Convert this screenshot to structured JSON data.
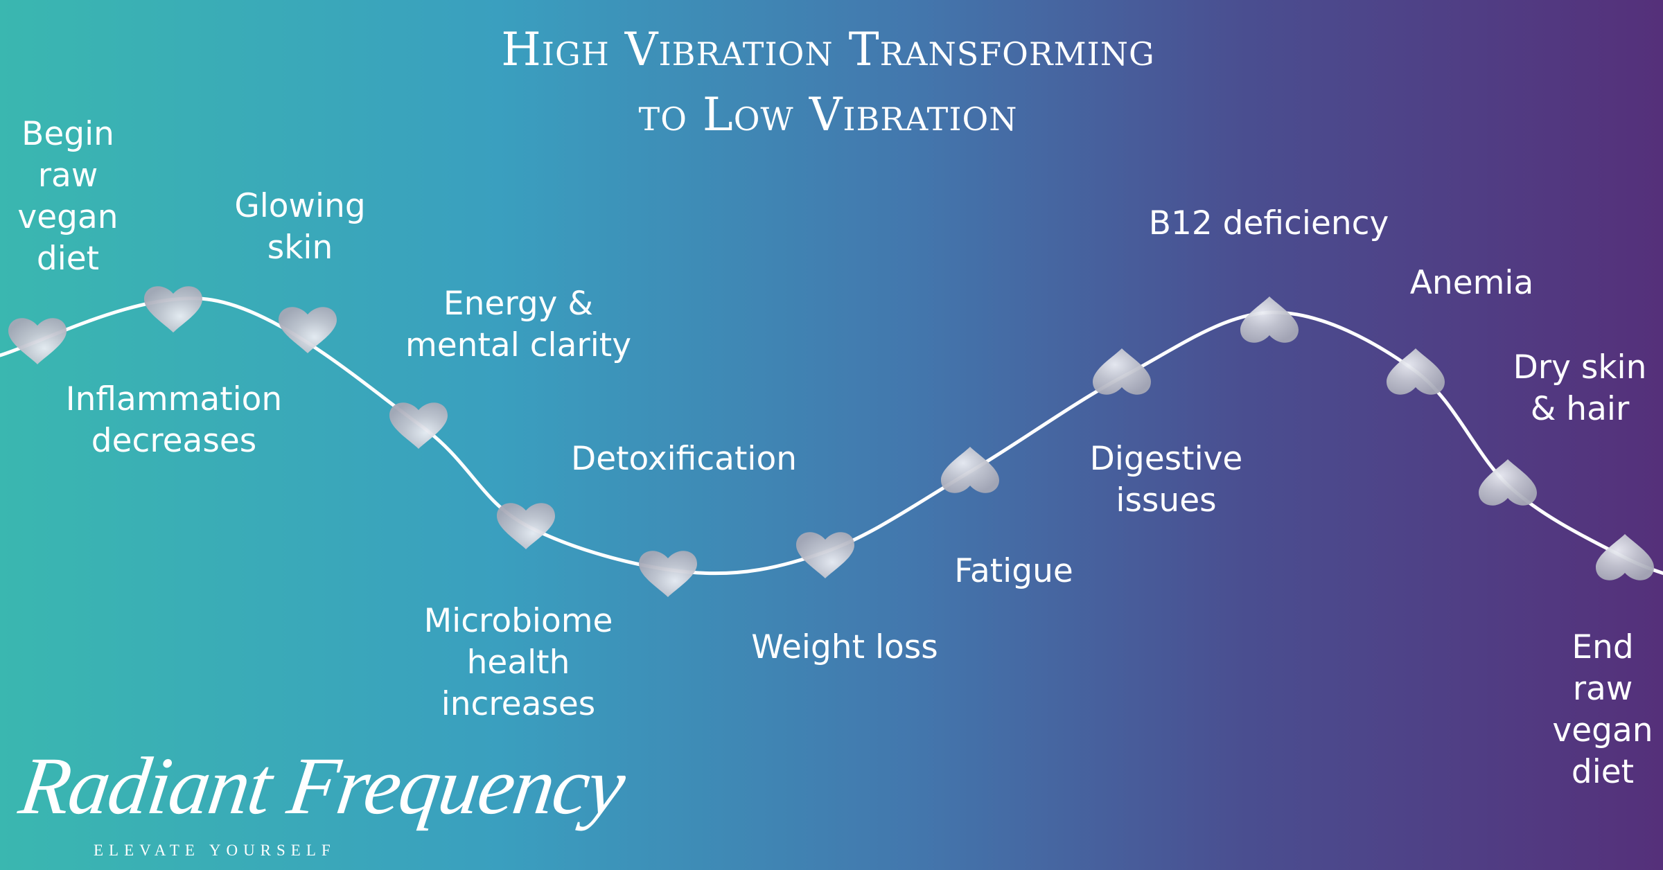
{
  "title": {
    "line1": "High Vibration Transforming",
    "line2": "to Low Vibration"
  },
  "labels": [
    {
      "lines": [
        "Begin",
        "raw",
        "vegan",
        "diet"
      ]
    },
    {
      "lines": [
        "Glowing",
        "skin"
      ]
    },
    {
      "lines": [
        "Inflammation",
        "decreases"
      ]
    },
    {
      "lines": [
        "Energy &",
        "mental clarity"
      ]
    },
    {
      "lines": [
        "Detoxification"
      ]
    },
    {
      "lines": [
        "Microbiome",
        "health",
        "increases"
      ]
    },
    {
      "lines": [
        "Weight loss"
      ]
    },
    {
      "lines": [
        "Fatigue"
      ]
    },
    {
      "lines": [
        "Digestive",
        "issues"
      ]
    },
    {
      "lines": [
        "B12 deficiency"
      ]
    },
    {
      "lines": [
        "Anemia"
      ]
    },
    {
      "lines": [
        "Dry skin",
        "& hair"
      ]
    },
    {
      "lines": [
        "End",
        "raw",
        "vegan",
        "diet"
      ]
    }
  ],
  "hearts": [
    {
      "orientation": "upright"
    },
    {
      "orientation": "upright"
    },
    {
      "orientation": "upright"
    },
    {
      "orientation": "upright"
    },
    {
      "orientation": "upright"
    },
    {
      "orientation": "upright"
    },
    {
      "orientation": "upright"
    },
    {
      "orientation": "inverted"
    },
    {
      "orientation": "inverted"
    },
    {
      "orientation": "inverted"
    },
    {
      "orientation": "inverted"
    },
    {
      "orientation": "inverted"
    },
    {
      "orientation": "inverted"
    }
  ],
  "colors": {
    "gradient_start": "#3ab7b0",
    "gradient_end": "#55307a",
    "heart": "#c4c6d0",
    "curve": "#ffffff"
  },
  "logo": {
    "name": "Radiant Frequency",
    "tagline": "ELEVATE YOURSELF"
  }
}
